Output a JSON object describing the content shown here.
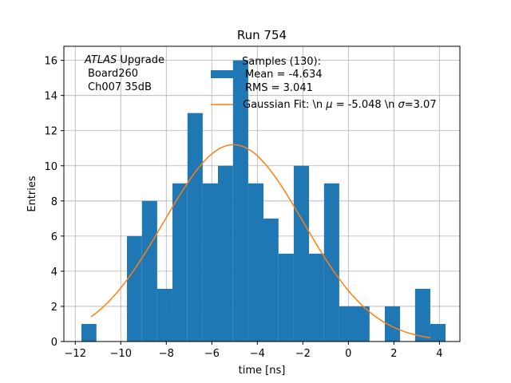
{
  "chart_data": {
    "type": "bar",
    "title": "Run 754",
    "xlabel": "time [ns]",
    "ylabel": "Entries",
    "xlim": [
      -12.5,
      4.9
    ],
    "ylim": [
      0,
      16.8
    ],
    "grid": true,
    "x_ticks": [
      -12,
      -10,
      -8,
      -6,
      -4,
      -2,
      0,
      2,
      4
    ],
    "y_ticks": [
      0,
      2,
      4,
      6,
      8,
      10,
      12,
      14,
      16
    ],
    "histogram": {
      "name": "Samples (130):",
      "color": "#1f77b4",
      "bin_edges": [
        -11.73,
        -11.07,
        -10.4,
        -9.73,
        -9.07,
        -8.4,
        -7.73,
        -7.07,
        -6.4,
        -5.73,
        -5.07,
        -4.4,
        -3.73,
        -3.07,
        -2.4,
        -1.73,
        -1.07,
        -0.4,
        0.27,
        0.93,
        1.6,
        2.27,
        2.93,
        3.6,
        4.27
      ],
      "counts": [
        1,
        0,
        0,
        6,
        8,
        3,
        9,
        13,
        9,
        10,
        16,
        9,
        7,
        5,
        10,
        5,
        9,
        2,
        2,
        0,
        2,
        0,
        3,
        1
      ]
    },
    "fit": {
      "name": "Gaussian Fit: \\n $\\mu$ = -5.048 \\n $\\sigma$=3.07",
      "color": "#ff7f0e",
      "amplitude": 11.2,
      "mu": -5.048,
      "sigma": 3.07,
      "x_range": [
        -11.3,
        3.6
      ]
    },
    "annotation": {
      "line1_italic": "ATLAS",
      "line1_rest": " Upgrade",
      "line2": "Board260",
      "line3": "Ch007 35dB"
    },
    "legend": {
      "placement": "top-right",
      "hist_lines": [
        "Samples (130):",
        "Mean = -4.634",
        "RMS = 3.041"
      ],
      "fit_label_prefix": "Gaussian Fit: \\n ",
      "fit_mu_symbol": "μ",
      "fit_mu_value": " = -5.048 \\n ",
      "fit_sigma_symbol": "σ",
      "fit_sigma_value": "=3.07"
    }
  }
}
